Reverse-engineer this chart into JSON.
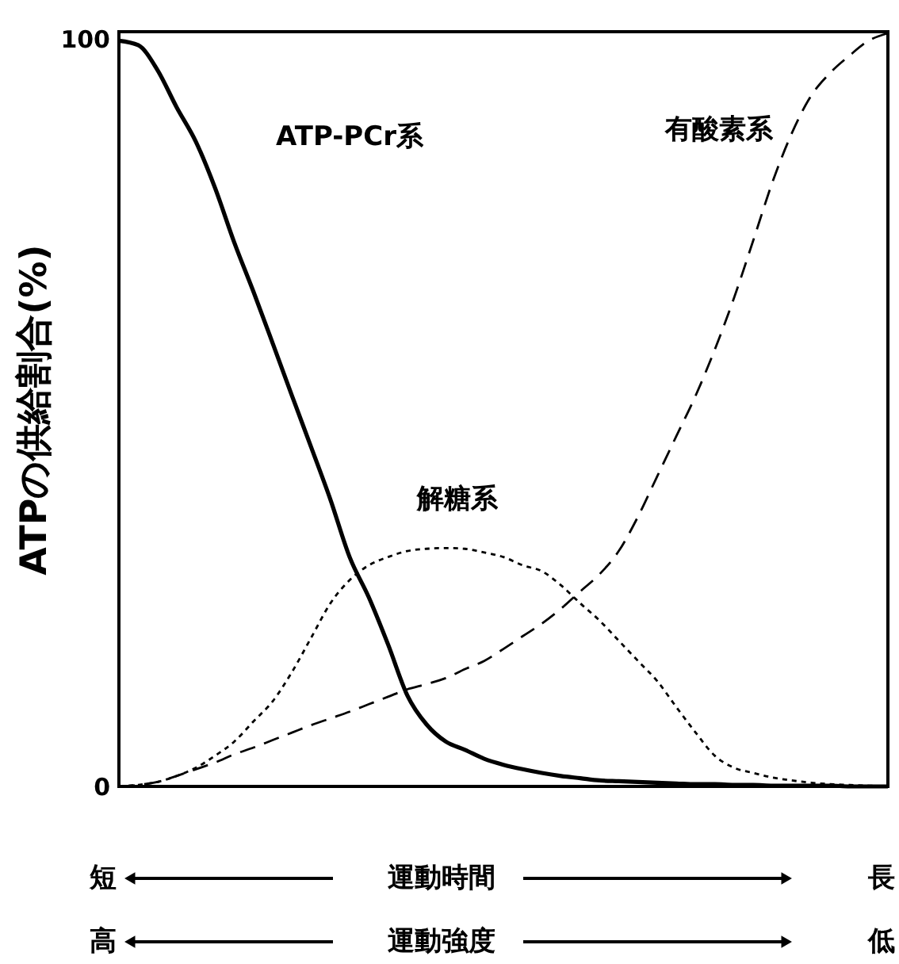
{
  "chart_data": {
    "type": "line",
    "ylabel": "ATPの供給割合(%)",
    "ylim": [
      0,
      101
    ],
    "yticks": [
      0,
      100
    ],
    "marker": "none",
    "categories": [
      null,
      null,
      null,
      null,
      null,
      null,
      null,
      null,
      null,
      null,
      null,
      null,
      null,
      null,
      null,
      null,
      null,
      null,
      null,
      null,
      null,
      null,
      null,
      null,
      null,
      null,
      null,
      null,
      null,
      null,
      null,
      null,
      null,
      null,
      null,
      null,
      null,
      null,
      null,
      null,
      null
    ],
    "series": [
      {
        "name": "ATP-PCr系",
        "color": "#000000",
        "line_style": "solid",
        "values": [
          99.8,
          99.2,
          95.9,
          90.9,
          86.3,
          80.1,
          72.8,
          66.2,
          59.3,
          52.3,
          45.4,
          38.4,
          30.7,
          25.3,
          19.0,
          12.2,
          8.3,
          6.0,
          4.9,
          3.7,
          2.9,
          2.3,
          1.8,
          1.4,
          1.1,
          0.8,
          0.7,
          0.6,
          0.5,
          0.4,
          0.3,
          0.3,
          0.2,
          0.2,
          0.1,
          0.1,
          0.1,
          0.1,
          0,
          0,
          0
        ]
      },
      {
        "name": "解糖系",
        "color": "#000000",
        "line_style": "dotted",
        "values": [
          0,
          0.2,
          0.6,
          1.4,
          2.5,
          4.1,
          6.0,
          8.7,
          11.4,
          15.3,
          19.9,
          24.5,
          27.6,
          29.6,
          30.7,
          31.5,
          31.8,
          31.9,
          31.8,
          31.3,
          30.7,
          29.6,
          28.8,
          26.9,
          24.5,
          22.2,
          19.5,
          16.8,
          14.1,
          10.6,
          7.2,
          4.1,
          2.5,
          1.8,
          1.2,
          0.8,
          0.5,
          0.3,
          0.2,
          0.1,
          0
        ]
      },
      {
        "name": "有酸素系",
        "color": "#000000",
        "line_style": "dashed",
        "values": [
          0,
          0.2,
          0.6,
          1.4,
          2.3,
          3.2,
          4.3,
          5.2,
          6.2,
          7.2,
          8.2,
          9.1,
          10.0,
          11.0,
          12.0,
          13.0,
          13.7,
          14.5,
          15.7,
          16.8,
          18.4,
          20.1,
          21.8,
          23.8,
          26.1,
          28.4,
          31.5,
          36.1,
          41.5,
          46.9,
          52.3,
          58.5,
          65.4,
          73.1,
          80.9,
          87.4,
          92.4,
          95.5,
          97.8,
          99.8,
          100.8
        ]
      }
    ],
    "annotations": [
      "短",
      "運動時間",
      "長",
      "高",
      "運動強度",
      "低"
    ]
  }
}
